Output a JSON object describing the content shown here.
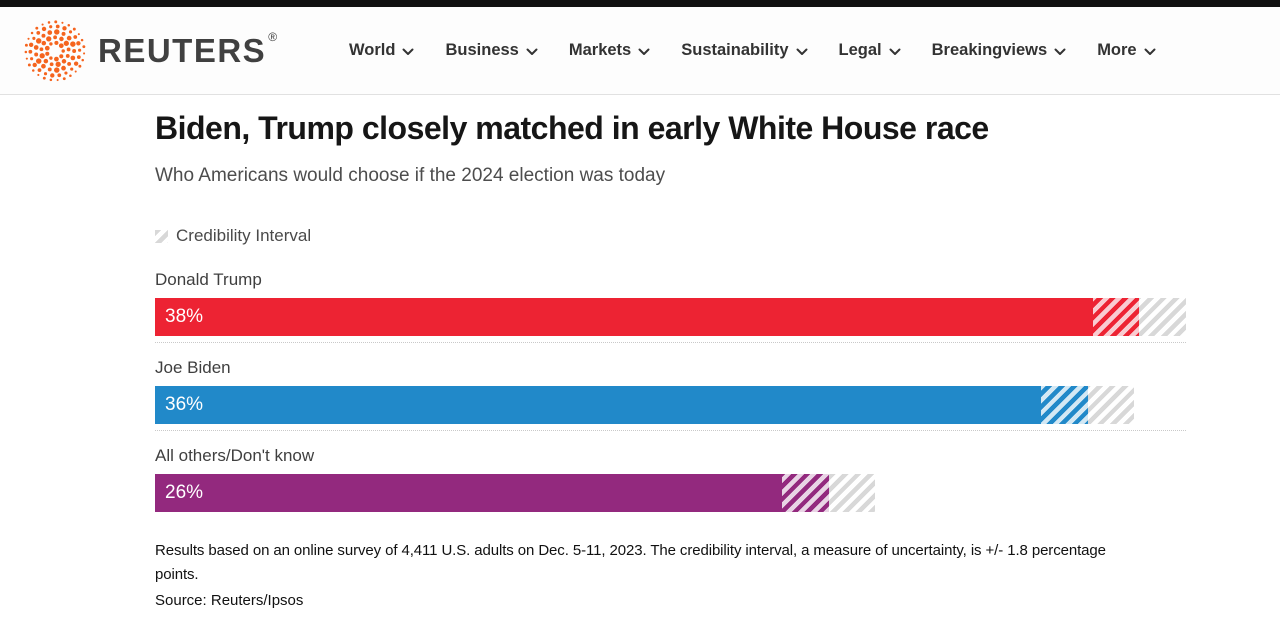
{
  "page": {
    "top_bar_color": "#111111"
  },
  "header": {
    "brand": "REUTERS",
    "registered_mark": "®",
    "logo_color": "#f5641e",
    "nav_items": [
      {
        "label": "World"
      },
      {
        "label": "Business"
      },
      {
        "label": "Markets"
      },
      {
        "label": "Sustainability"
      },
      {
        "label": "Legal"
      },
      {
        "label": "Breakingviews"
      },
      {
        "label": "More"
      }
    ]
  },
  "article": {
    "title": "Biden, Trump closely matched in early White House race",
    "subtitle": "Who Americans would choose if the 2024 election was today"
  },
  "chart_data": {
    "type": "bar",
    "orientation": "horizontal",
    "title": "Biden, Trump closely matched in early White House race",
    "subtitle": "Who Americans would choose if the 2024 election was today",
    "legend_label": "Credibility Interval",
    "legend_position": "top-left",
    "credibility_interval": 1.8,
    "axis_max": 39.8,
    "grid": false,
    "categories": [
      "Donald Trump",
      "Joe Biden",
      "All others/Don't know"
    ],
    "values": [
      38,
      36,
      26
    ],
    "bars": [
      {
        "label": "Donald Trump",
        "value": 38,
        "value_label": "38%",
        "ci_low": 36.2,
        "ci_high": 39.8,
        "color": "#ed2333",
        "hatch_light": "#f9ccd1"
      },
      {
        "label": "Joe Biden",
        "value": 36,
        "value_label": "36%",
        "ci_low": 34.2,
        "ci_high": 37.8,
        "color": "#2189c9",
        "hatch_light": "#d3e8f4"
      },
      {
        "label": "All others/Don't know",
        "value": 26,
        "value_label": "26%",
        "ci_low": 24.2,
        "ci_high": 27.8,
        "color": "#93297e",
        "hatch_light": "#e9d4e5"
      }
    ],
    "ci_hatch": {
      "stripe": "#d8d8d8",
      "gap": "#ffffff"
    }
  },
  "footnote": {
    "note": "Results based on an online survey of 4,411 U.S. adults on Dec. 5-11, 2023. The credibility interval, a measure of uncertainty, is +/- 1.8 percentage points.",
    "source": "Source: Reuters/Ipsos"
  }
}
